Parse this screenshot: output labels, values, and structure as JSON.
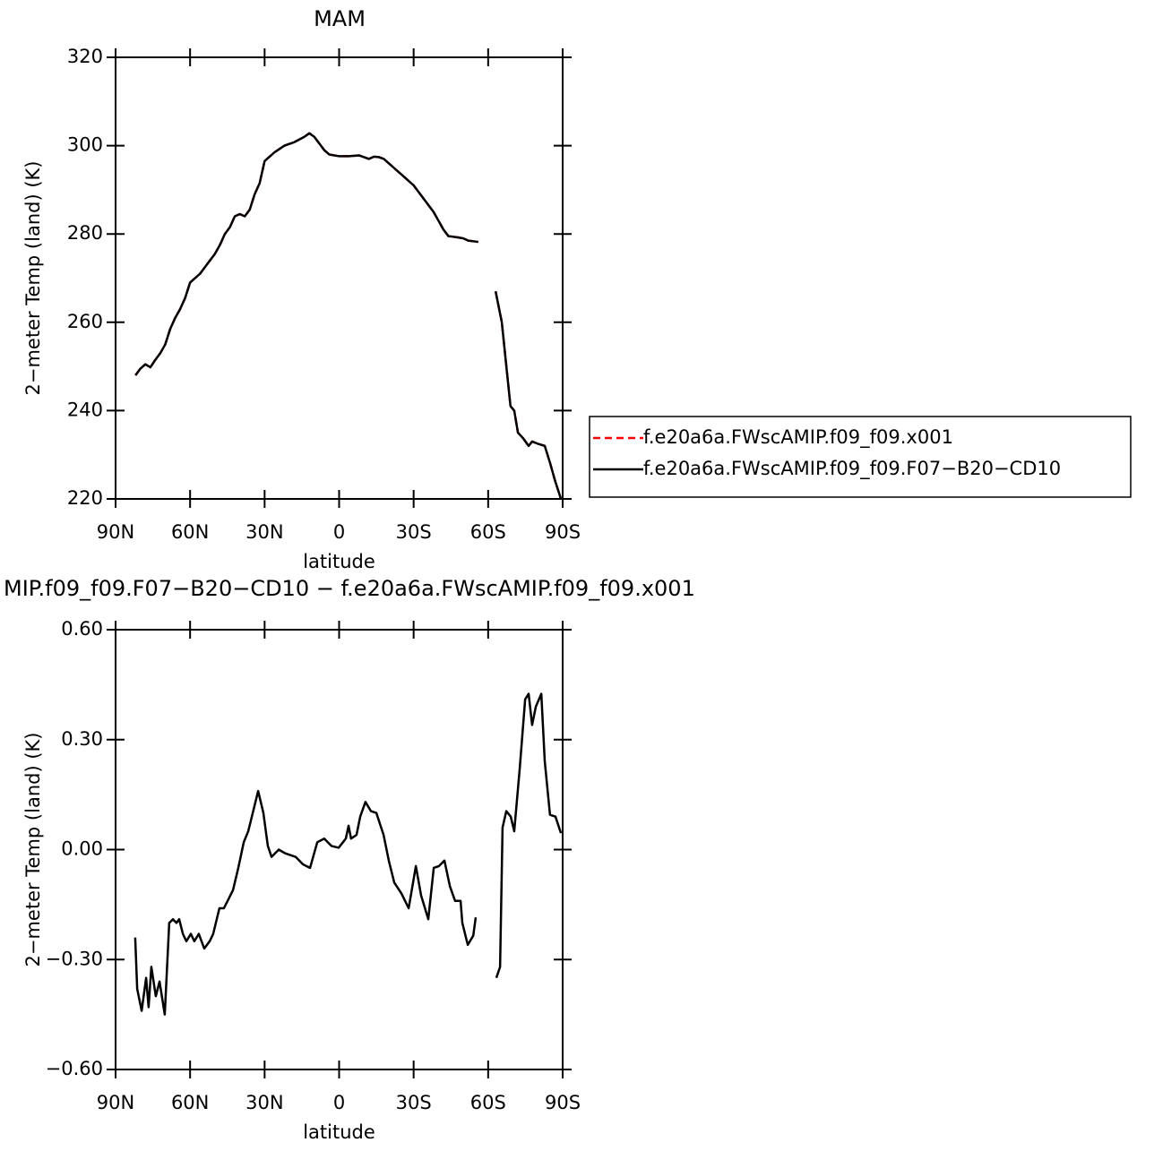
{
  "chart_data": [
    {
      "type": "line",
      "title": "MAM",
      "x_label": "latitude",
      "y_label": "2−meter Temp (land) (K)",
      "xlim": [
        90,
        -90
      ],
      "xticks": [
        {
          "value": 90,
          "label": "90N"
        },
        {
          "value": 60,
          "label": "60N"
        },
        {
          "value": 30,
          "label": "30N"
        },
        0,
        {
          "value": -30,
          "label": "30S"
        },
        {
          "value": -60,
          "label": "60S"
        },
        {
          "value": -90,
          "label": "90S"
        }
      ],
      "ylim": [
        220,
        320
      ],
      "yticks": [
        220,
        240,
        260,
        280,
        300,
        320
      ],
      "legend": "right",
      "x": [
        82,
        80,
        78,
        76,
        74,
        72,
        70,
        68,
        66,
        64,
        62,
        60,
        58,
        56,
        54,
        52,
        50,
        48,
        46,
        44,
        42,
        40,
        38,
        36,
        34,
        32,
        30,
        26,
        22,
        18,
        14,
        12,
        10,
        8,
        6,
        4,
        2,
        0,
        -4,
        -8,
        -10,
        -12,
        -14,
        -16,
        -18,
        -20,
        -22,
        -26,
        -30,
        -34,
        -38,
        -40,
        -42,
        -44,
        -48,
        -50,
        -52,
        -56,
        -60,
        -63,
        -65.5,
        -67.7,
        -69,
        -70.5,
        -72,
        -74,
        -76.3,
        -77.7,
        -80,
        -82.8,
        -85,
        -87,
        -89.3
      ],
      "series": [
        {
          "name": "f.e20a6a.FWscAMIP.f09_f09.x001",
          "color": "#ff0000",
          "line_style": "dashed",
          "values": [
            248,
            249.5,
            250.5,
            249.8,
            251.5,
            253,
            255,
            258.5,
            261,
            263,
            265.5,
            269,
            270,
            271,
            272.5,
            274,
            275.5,
            277.5,
            280,
            281.5,
            284,
            284.5,
            284,
            285.5,
            289,
            291.5,
            296.5,
            298.5,
            300,
            300.8,
            302,
            302.8,
            302,
            300.5,
            299,
            298,
            297.8,
            297.6,
            297.6,
            297.8,
            297.4,
            297,
            297.5,
            297.4,
            297,
            296,
            295,
            293,
            291,
            288,
            285,
            283,
            281,
            279.5,
            279.2,
            279,
            278.5,
            278.2,
            null,
            267,
            260,
            248,
            241,
            240,
            235,
            233.8,
            232,
            233,
            232.5,
            232,
            228,
            224,
            220
          ]
        },
        {
          "name": "f.e20a6a.FWscAMIP.f09_f09.F07−B20−CD10",
          "color": "#000000",
          "line_style": "solid",
          "values": [
            248,
            249.5,
            250.5,
            249.8,
            251.5,
            253,
            255,
            258.5,
            261,
            263,
            265.5,
            269,
            270,
            271,
            272.5,
            274,
            275.5,
            277.5,
            280,
            281.5,
            284,
            284.5,
            284,
            285.5,
            289,
            291.5,
            296.5,
            298.5,
            300,
            300.8,
            302,
            302.8,
            302,
            300.5,
            299,
            298,
            297.8,
            297.6,
            297.6,
            297.8,
            297.4,
            297,
            297.5,
            297.4,
            297,
            296,
            295,
            293,
            291,
            288,
            285,
            283,
            281,
            279.5,
            279.2,
            279,
            278.5,
            278.2,
            null,
            267,
            260,
            248,
            241,
            240,
            235,
            233.8,
            232,
            233,
            232.5,
            232,
            228,
            224,
            220
          ]
        }
      ]
    },
    {
      "type": "line",
      "title": "MIP.f09_f09.F07−B20−CD10 − f.e20a6a.FWscAMIP.f09_f09.x001",
      "x_label": "latitude",
      "y_label": "2−meter Temp (land) (K)",
      "xlim": [
        90,
        -90
      ],
      "xticks": [
        {
          "value": 90,
          "label": "90N"
        },
        {
          "value": 60,
          "label": "60N"
        },
        {
          "value": 30,
          "label": "30N"
        },
        0,
        {
          "value": -30,
          "label": "30S"
        },
        {
          "value": -60,
          "label": "60S"
        },
        {
          "value": -90,
          "label": "90S"
        }
      ],
      "ylim": [
        -0.6,
        0.6
      ],
      "yticks": [
        {
          "value": -0.6,
          "label": "−0.60"
        },
        {
          "value": -0.3,
          "label": "−0.30"
        },
        {
          "value": 0,
          "label": "0.00"
        },
        {
          "value": 0.3,
          "label": "0.30"
        },
        {
          "value": 0.6,
          "label": "0.60"
        }
      ],
      "color": "#000000",
      "x": [
        82.1,
        81.3,
        79.5,
        77.7,
        76.7,
        75.6,
        73.8,
        72.3,
        70.2,
        68.4,
        66.9,
        65.5,
        64.4,
        62.9,
        61.5,
        59.7,
        58.3,
        56.5,
        54.3,
        52.1,
        50.7,
        48.2,
        46.4,
        44.9,
        42.7,
        40.6,
        38.4,
        36.6,
        35.5,
        32.6,
        30.5,
        28.7,
        27.2,
        24.3,
        21.8,
        17.5,
        14.6,
        11.7,
        8.8,
        6.0,
        3.1,
        0.2,
        -2.7,
        -3.8,
        -4.8,
        -7.0,
        -8.5,
        -10.6,
        -12.8,
        -15.0,
        -17.9,
        -20.0,
        -22.2,
        -25.1,
        -28.0,
        -30.9,
        -33.0,
        -35.9,
        -38.1,
        -40.2,
        -42.4,
        -44.6,
        -46.7,
        -48.9,
        -49.6,
        -51.8,
        -54.0,
        -55.0,
        -60,
        -63.3,
        -64.8,
        -65.8,
        -67.3,
        -69.1,
        -70.5,
        -72.7,
        -74.9,
        -76.3,
        -77.7,
        -79.2,
        -81.4,
        -82.8,
        -84.9,
        -87.1,
        -89.3
      ],
      "values": [
        -0.24,
        -0.38,
        -0.44,
        -0.35,
        -0.43,
        -0.32,
        -0.4,
        -0.36,
        -0.45,
        -0.2,
        -0.19,
        -0.2,
        -0.19,
        -0.23,
        -0.25,
        -0.23,
        -0.25,
        -0.23,
        -0.27,
        -0.25,
        -0.23,
        -0.16,
        -0.16,
        -0.14,
        -0.11,
        -0.05,
        0.02,
        0.05,
        0.08,
        0.16,
        0.1,
        0.01,
        -0.02,
        0.0,
        -0.01,
        -0.02,
        -0.04,
        -0.05,
        0.02,
        0.03,
        0.01,
        0.005,
        0.03,
        0.065,
        0.03,
        0.04,
        0.09,
        0.13,
        0.105,
        0.1,
        0.04,
        -0.03,
        -0.09,
        -0.12,
        -0.16,
        -0.045,
        -0.125,
        -0.19,
        -0.05,
        -0.045,
        -0.03,
        -0.1,
        -0.14,
        -0.14,
        -0.2,
        -0.26,
        -0.235,
        -0.185,
        null,
        -0.35,
        -0.32,
        0.06,
        0.105,
        0.09,
        0.05,
        0.22,
        0.41,
        0.425,
        0.34,
        0.39,
        0.425,
        0.24,
        0.095,
        0.09,
        0.045
      ]
    }
  ]
}
